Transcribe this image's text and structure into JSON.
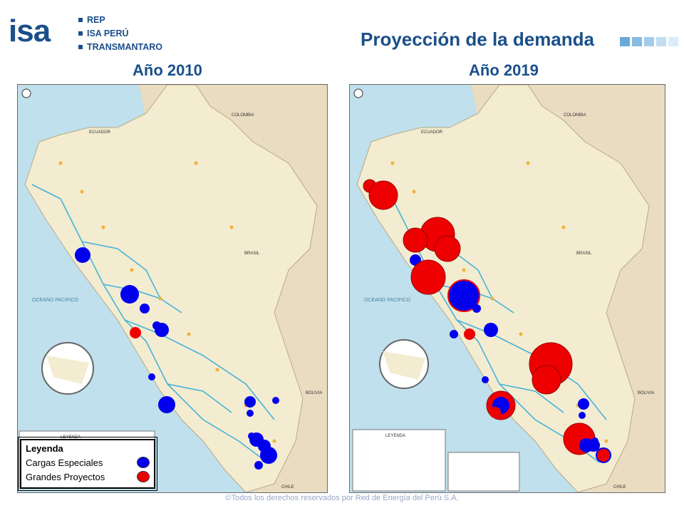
{
  "header": {
    "logo_text": "isa",
    "brands": [
      "REP",
      "ISA PERÚ",
      "TRANSMANTARO"
    ],
    "title": "Proyección de la demanda"
  },
  "maps": [
    {
      "year_label": "Año 2010"
    },
    {
      "year_label": "Año 2019"
    }
  ],
  "map_labels": {
    "colombia": "COLOMBIA",
    "ecuador": "ECUADOR",
    "brasil": "BRASIL",
    "bolivia": "BOLIVIA",
    "chile": "CHILE",
    "ocean": "OCEANO PACIFICO",
    "legend_small": "LEYENDA"
  },
  "legend": {
    "title": "Leyenda",
    "items": [
      {
        "label": "Cargas Especiales",
        "color": "#0000ee"
      },
      {
        "label": "Grandes Proyectos",
        "color": "#ee0000"
      }
    ]
  },
  "colors": {
    "brand_blue": "#1b4f8a",
    "land": "#f3ecd0",
    "neighbor": "#e9dcc0",
    "sea": "#bfe0ec",
    "special_load": "#0000ee",
    "big_project": "#ee0000"
  },
  "footer": "©Todos los derechos reservados por Red de Energía del Perú S.A."
}
